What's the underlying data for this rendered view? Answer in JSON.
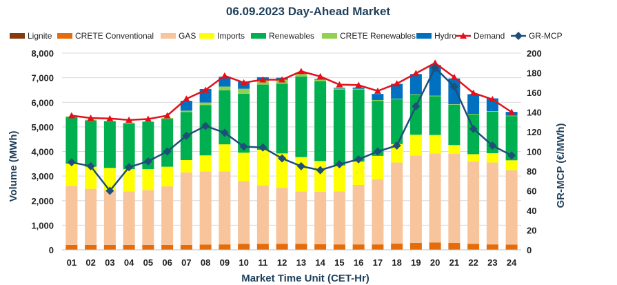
{
  "chart_data": {
    "type": "bar",
    "subtype": "stacked-bar-with-lines",
    "title": "06.09.2023  Day-Ahead Market",
    "xlabel": "Market Time Unit (CET-Hr)",
    "ylabel": "Volume (MWh)",
    "y2label": "GR-MCP (€/MWh)",
    "ylim": [
      0,
      8000
    ],
    "y2lim": [
      0,
      200
    ],
    "yticks": [
      0,
      1000,
      2000,
      3000,
      4000,
      5000,
      6000,
      7000,
      8000
    ],
    "ytick_labels": [
      "0",
      "1,000",
      "2,000",
      "3,000",
      "4,000",
      "5,000",
      "6,000",
      "7,000",
      "8,000"
    ],
    "y2ticks": [
      0,
      20,
      40,
      60,
      80,
      100,
      120,
      140,
      160,
      180,
      200
    ],
    "y2tick_labels": [
      "0",
      "20",
      "40",
      "60",
      "80",
      "100",
      "120",
      "140",
      "160",
      "180",
      "200"
    ],
    "categories": [
      "01",
      "02",
      "03",
      "04",
      "05",
      "06",
      "07",
      "08",
      "09",
      "10",
      "11",
      "12",
      "13",
      "14",
      "15",
      "16",
      "17",
      "18",
      "19",
      "20",
      "21",
      "22",
      "23",
      "24"
    ],
    "legend": [
      "Lignite",
      "CRETE Conventional",
      "GAS",
      "Imports",
      "Renewables",
      "CRETE Renewables",
      "Hydro",
      "Demand",
      "GR-MCP"
    ],
    "series": [
      {
        "name": "Lignite",
        "color": "#843c0c",
        "kind": "bar",
        "values": [
          0,
          0,
          0,
          0,
          0,
          0,
          0,
          0,
          0,
          0,
          0,
          0,
          0,
          0,
          0,
          0,
          0,
          0,
          0,
          0,
          0,
          0,
          0,
          0
        ]
      },
      {
        "name": "CRETE Conventional",
        "color": "#e46c0a",
        "kind": "bar",
        "values": [
          200,
          200,
          200,
          200,
          200,
          200,
          200,
          210,
          220,
          240,
          240,
          240,
          240,
          230,
          220,
          220,
          220,
          250,
          280,
          300,
          280,
          240,
          220,
          210
        ]
      },
      {
        "name": "GAS",
        "color": "#f8c49c",
        "kind": "bar",
        "values": [
          2400,
          2280,
          2230,
          2180,
          2230,
          2380,
          2950,
          2980,
          2970,
          2560,
          2380,
          2280,
          2130,
          2130,
          2160,
          2420,
          2650,
          3300,
          3550,
          3620,
          3630,
          3350,
          3330,
          3030
        ]
      },
      {
        "name": "Imports",
        "color": "#ffff00",
        "kind": "bar",
        "values": [
          900,
          900,
          900,
          900,
          850,
          800,
          500,
          650,
          1100,
          1150,
          1450,
          1400,
          1400,
          1250,
          1050,
          950,
          950,
          750,
          850,
          750,
          350,
          300,
          380,
          400
        ]
      },
      {
        "name": "Renewables",
        "color": "#00b050",
        "kind": "bar",
        "values": [
          1900,
          1880,
          1890,
          1860,
          1920,
          1950,
          1950,
          2050,
          2200,
          2400,
          2650,
          2830,
          3280,
          3250,
          3090,
          2930,
          2240,
          1830,
          1630,
          1580,
          1640,
          1620,
          1690,
          1800
        ]
      },
      {
        "name": "CRETE Renewables",
        "color": "#92d050",
        "kind": "bar",
        "values": [
          30,
          30,
          30,
          30,
          30,
          30,
          60,
          100,
          150,
          200,
          200,
          170,
          110,
          60,
          40,
          30,
          30,
          20,
          20,
          20,
          20,
          20,
          20,
          20
        ]
      },
      {
        "name": "Hydro",
        "color": "#0070c0",
        "kind": "bar",
        "values": [
          0,
          0,
          0,
          0,
          0,
          0,
          400,
          550,
          400,
          300,
          100,
          80,
          30,
          30,
          30,
          50,
          250,
          600,
          820,
          1250,
          1050,
          800,
          520,
          150
        ]
      },
      {
        "name": "Demand",
        "color": "#e3101a",
        "kind": "line",
        "axis": "left",
        "values": [
          5460,
          5360,
          5340,
          5280,
          5320,
          5460,
          6140,
          6500,
          7080,
          6800,
          6920,
          6920,
          7260,
          7050,
          6720,
          6700,
          6460,
          6760,
          7180,
          7600,
          7020,
          6380,
          6120,
          5600
        ]
      },
      {
        "name": "GR-MCP",
        "color": "#1f4e79",
        "kind": "line",
        "axis": "right",
        "values": [
          89,
          85,
          60,
          84,
          90,
          100,
          116,
          126,
          119,
          105,
          104,
          93,
          85,
          81,
          87,
          92,
          100,
          106,
          146,
          185,
          166,
          123,
          106,
          96
        ]
      }
    ]
  }
}
